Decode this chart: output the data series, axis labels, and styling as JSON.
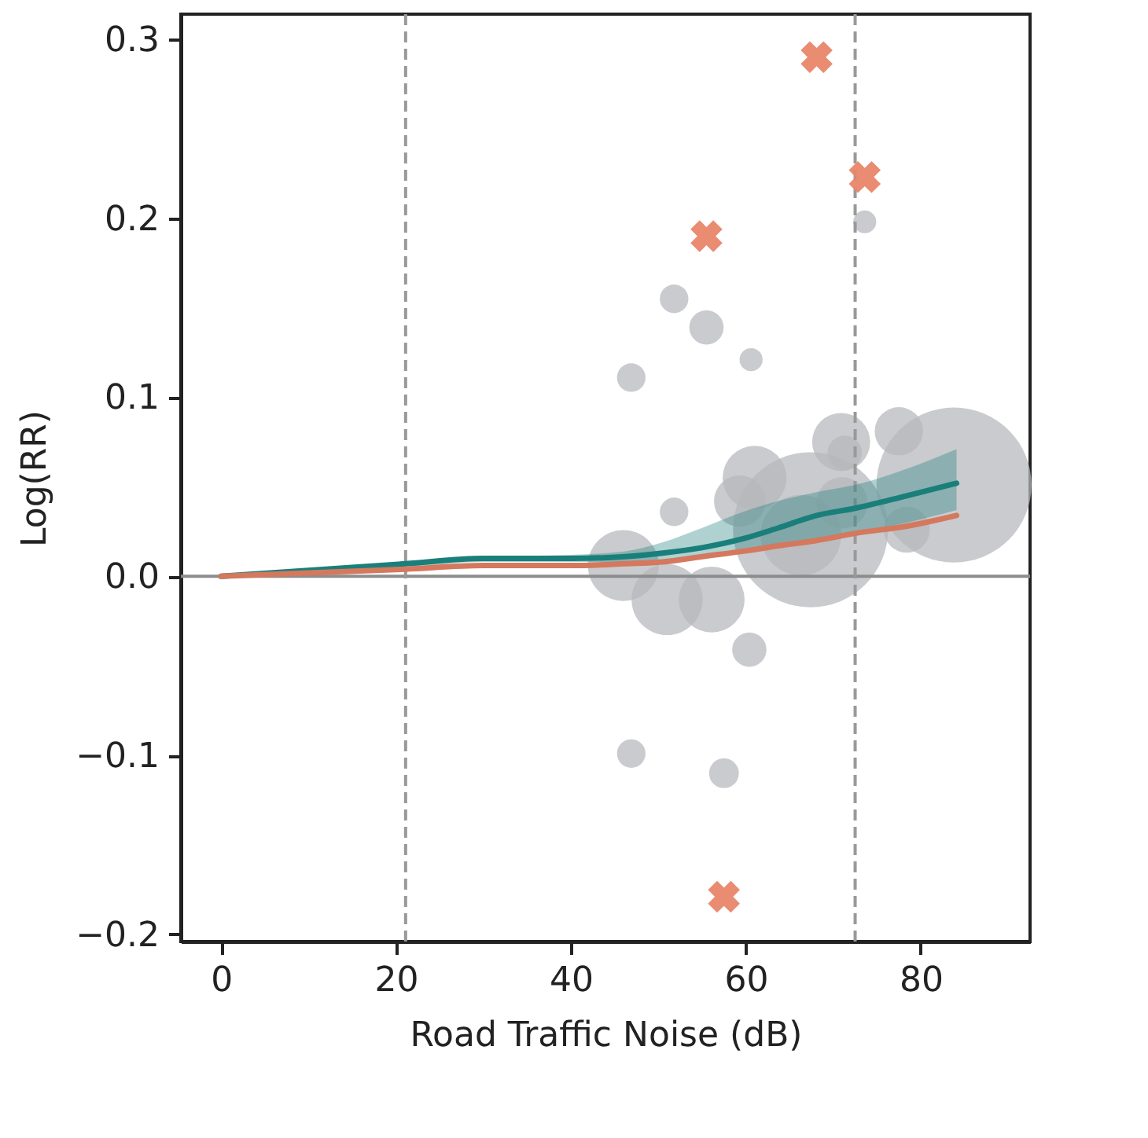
{
  "chart_data": {
    "type": "bubble",
    "xlabel": "Road Traffic Noise (dB)",
    "ylabel": "Log(RR)",
    "xlim": [
      -4.6,
      92.5
    ],
    "ylim": [
      -0.204,
      0.314
    ],
    "xticks": [
      0,
      20,
      40,
      60,
      80
    ],
    "yticks": [
      {
        "value": -0.2,
        "label": "−0.2"
      },
      {
        "value": -0.1,
        "label": "−0.1"
      },
      {
        "value": 0,
        "label": "0.0"
      },
      {
        "value": 0.1,
        "label": "0.1"
      },
      {
        "value": 0.2,
        "label": "0.2"
      },
      {
        "value": 0.3,
        "label": "0.3"
      }
    ],
    "grid": false,
    "series": [
      {
        "color": "#b5b7bb",
        "x": [
          46.9,
          51.8,
          55.5,
          60.6,
          73.6,
          51.8,
          46.9,
          57.5,
          60.4,
          46.0,
          51.0,
          56.1,
          67.4,
          61.0,
          59.3,
          66.3,
          70.9,
          71.3,
          77.5,
          83.8,
          78.4,
          71.0
        ],
        "values": [
          0.111,
          0.155,
          0.139,
          0.121,
          0.198,
          0.036,
          -0.099,
          -0.11,
          -0.041,
          0.006,
          -0.013,
          -0.013,
          0.026,
          0.055,
          0.042,
          0.023,
          0.075,
          0.069,
          0.081,
          0.051,
          0.026,
          0.041
        ],
        "sizes": [
          0.034,
          0.034,
          0.049,
          0.022,
          0.022,
          0.034,
          0.034,
          0.037,
          0.049,
          0.21,
          0.21,
          0.18,
          1,
          0.17,
          0.11,
          0.27,
          0.14,
          0.049,
          0.097,
          1,
          0.088,
          0.11
        ]
      },
      {
        "type": "line",
        "color": "#1a7f7a",
        "x": [
          0,
          21.1,
          30,
          40,
          46.2,
          50.5,
          55,
          59.7,
          63.7,
          68.1,
          72.5,
          78.4,
          84.1
        ],
        "values": [
          0,
          0.007,
          0.01,
          0.01,
          0.011,
          0.013,
          0.016,
          0.021,
          0.027,
          0.034,
          0.038,
          0.045,
          0.052
        ],
        "lower": [
          0,
          0.005,
          0.008,
          0.008,
          0.008,
          0.008,
          0.01,
          0.013,
          0.016,
          0.019,
          0.024,
          0.03,
          0.037
        ],
        "upper": [
          0,
          0.008,
          0.011,
          0.012,
          0.014,
          0.019,
          0.027,
          0.036,
          0.042,
          0.047,
          0.051,
          0.06,
          0.071
        ]
      },
      {
        "type": "line",
        "color": "#d4785e",
        "x": [
          0,
          21.1,
          30,
          40,
          46.2,
          50.5,
          55,
          59.7,
          63.7,
          68.1,
          72.5,
          78.4,
          84.1
        ],
        "values": [
          0,
          0.004,
          0.006,
          0.006,
          0.007,
          0.008,
          0.011,
          0.014,
          0.017,
          0.02,
          0.024,
          0.028,
          0.034
        ]
      },
      {
        "type": "scatter",
        "marker": "cross",
        "color": "#e8866a",
        "x": [
          68.1,
          73.6,
          55.5,
          57.5
        ],
        "values": [
          0.29,
          0.223,
          0.19,
          -0.179
        ]
      }
    ],
    "ref_lines": [
      {
        "axis": "x",
        "value": 21.1,
        "line_style": "dashed",
        "color": "#999999"
      },
      {
        "axis": "x",
        "value": 72.5,
        "line_style": "dashed",
        "color": "#999999"
      },
      {
        "axis": "y",
        "value": 0,
        "line_style": "solid",
        "color": "#8c8c8c"
      }
    ]
  }
}
